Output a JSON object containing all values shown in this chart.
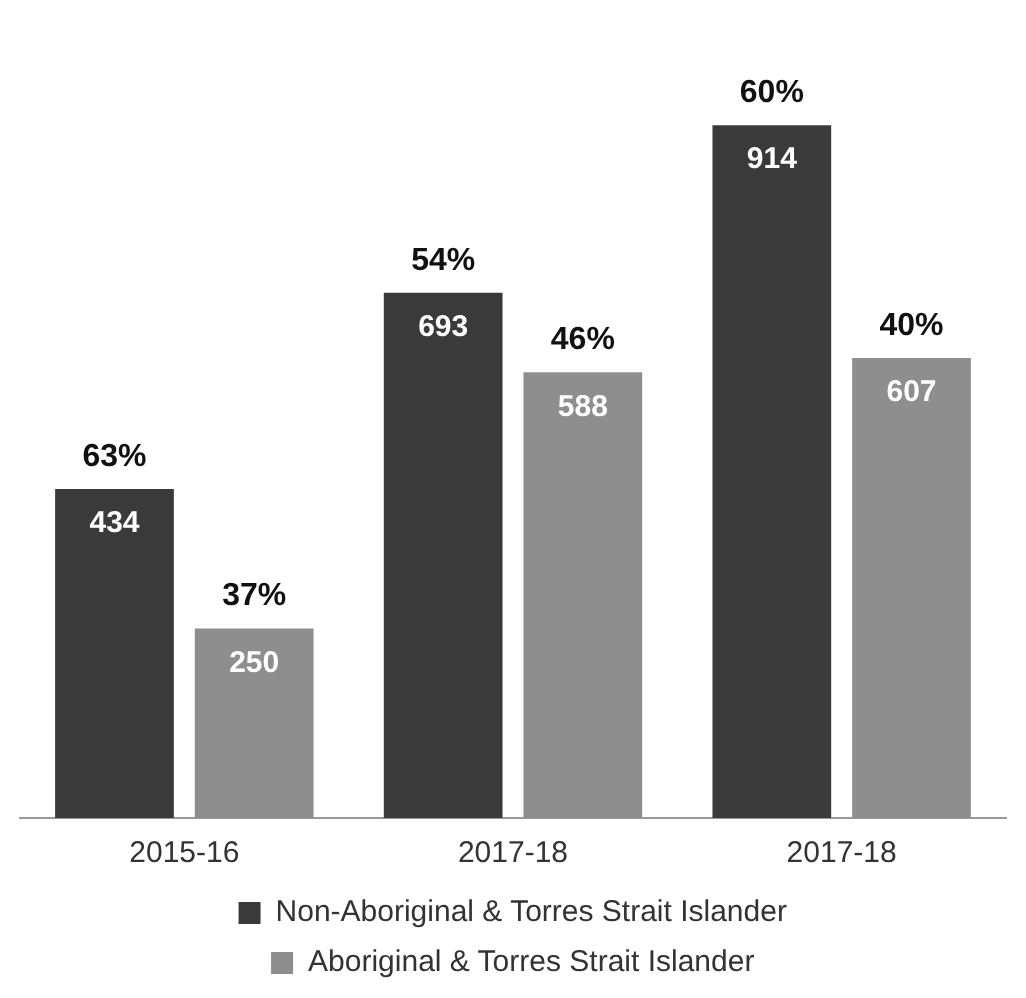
{
  "chart_data": {
    "type": "bar",
    "categories": [
      "2015-16",
      "2017-18",
      "2017-18"
    ],
    "series": [
      {
        "name": "Non-Aboriginal & Torres Strait Islander",
        "color": "#3a3a3a",
        "values": [
          434,
          693,
          914
        ]
      },
      {
        "name": "Aboriginal & Torres Strait Islander",
        "color": "#8e8e8e",
        "values": [
          250,
          588,
          607
        ]
      }
    ],
    "data_labels": true,
    "grid": false,
    "legend": "bottom",
    "annotations": [
      "63%",
      "37%",
      "54%",
      "46%",
      "60%",
      "40%"
    ]
  }
}
